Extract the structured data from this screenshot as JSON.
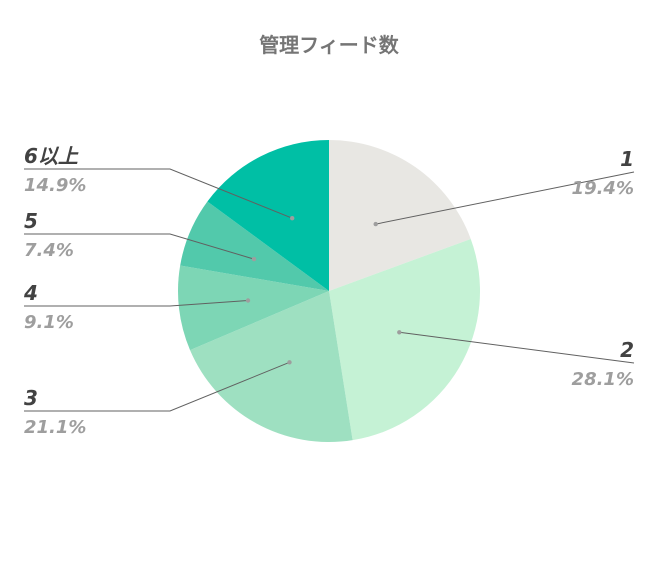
{
  "chart_data": {
    "type": "pie",
    "title": "管理フィード数",
    "start_angle_deg": 0,
    "direction": "clockwise",
    "label_text_color": "#424242",
    "percent_text_color": "#9e9e9e",
    "title_color": "#757575",
    "slices": [
      {
        "label": "1",
        "value": 19.4,
        "value_label": "19.4%",
        "color": "#e8e7e3",
        "side": "right"
      },
      {
        "label": "2",
        "value": 28.1,
        "value_label": "28.1%",
        "color": "#c5f2d5",
        "side": "right"
      },
      {
        "label": "3",
        "value": 21.1,
        "value_label": "21.1%",
        "color": "#9ee0c1",
        "side": "left"
      },
      {
        "label": "4",
        "value": 9.1,
        "value_label": "9.1%",
        "color": "#7dd6b5",
        "side": "left"
      },
      {
        "label": "5",
        "value": 7.4,
        "value_label": "7.4%",
        "color": "#52c9ab",
        "side": "left"
      },
      {
        "label": "6以上",
        "value": 14.9,
        "value_label": "14.9%",
        "color": "#00bfa5",
        "side": "left"
      }
    ]
  }
}
